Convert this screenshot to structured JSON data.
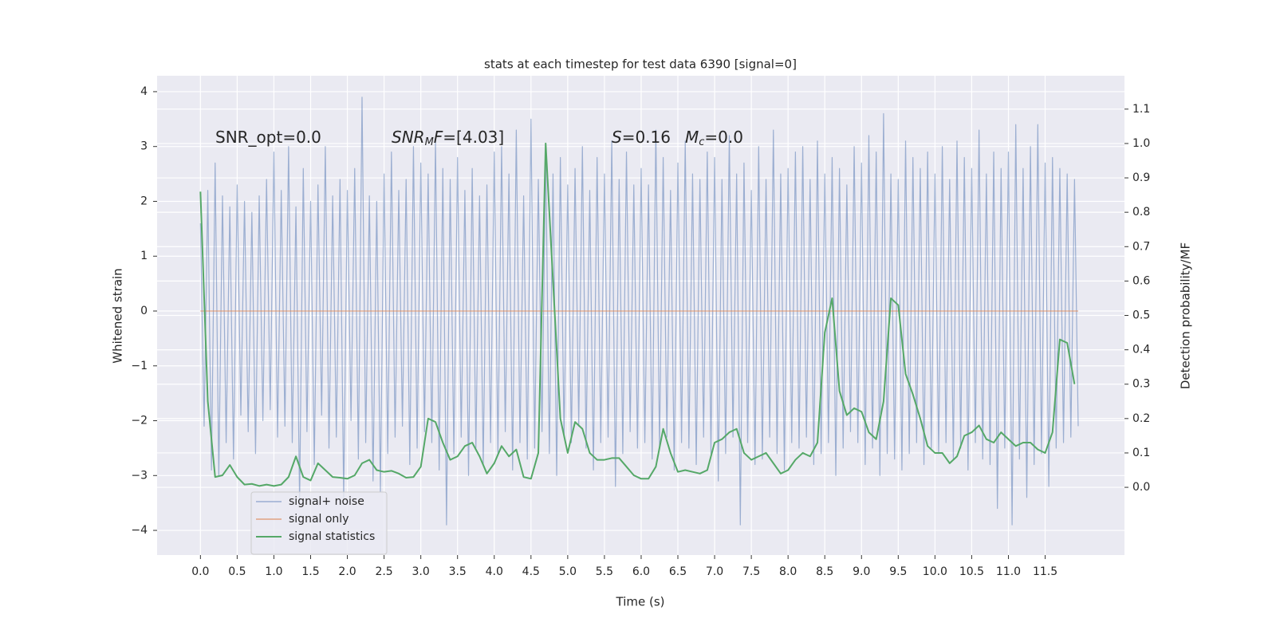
{
  "chart_data": {
    "type": "line",
    "title": "stats at each timestep for test data 6390 [signal=0]",
    "x_label": "Time (s)",
    "y_label": "Whitened strain",
    "y2_label": "Detection probability/MF",
    "grid": true,
    "legend": "lower left",
    "annotations": [
      {
        "segments": [
          {
            "text": "SNR_opt=0.0"
          }
        ]
      },
      {
        "segments": [
          {
            "text": "SNR",
            "style": "italic"
          },
          {
            "text": "M",
            "style": "subscript"
          },
          {
            "text": "F",
            "style": "italic"
          },
          {
            "text": "=[4.03]"
          }
        ]
      },
      {
        "segments": [
          {
            "text": "S",
            "style": "italic"
          },
          {
            "text": "=0.16"
          }
        ]
      },
      {
        "segments": [
          {
            "text": "M",
            "style": "italic"
          },
          {
            "text": "c",
            "style": "subscript"
          },
          {
            "text": "=0.0"
          }
        ]
      }
    ],
    "xlim": [
      -0.59,
      12.58
    ],
    "ylim": [
      -4.45,
      4.29
    ],
    "y2lim": [
      -0.197,
      1.197
    ],
    "xticks": [
      {
        "value": 0,
        "label": "0.0"
      },
      0.5,
      {
        "value": 1,
        "label": "1.0"
      },
      1.5,
      {
        "value": 2,
        "label": "2.0"
      },
      2.5,
      {
        "value": 3,
        "label": "3.0"
      },
      3.5,
      {
        "value": 4,
        "label": "4.0"
      },
      4.5,
      {
        "value": 5,
        "label": "5.0"
      },
      5.5,
      {
        "value": 6,
        "label": "6.0"
      },
      6.5,
      {
        "value": 7,
        "label": "7.0"
      },
      7.5,
      {
        "value": 8,
        "label": "8.0"
      },
      8.5,
      {
        "value": 9,
        "label": "9.0"
      },
      9.5,
      {
        "value": 10,
        "label": "10.0"
      },
      10.5,
      {
        "value": 11,
        "label": "11.0"
      },
      11.5
    ],
    "yticks": [
      {
        "value": -4,
        "label": "−4"
      },
      {
        "value": -3,
        "label": "−3"
      },
      {
        "value": -2,
        "label": "−2"
      },
      {
        "value": -1,
        "label": "−1"
      },
      0,
      1,
      2,
      3,
      4
    ],
    "y2ticks": [
      {
        "value": 0,
        "label": "0.0"
      },
      0.1,
      0.2,
      0.3,
      0.4,
      0.5,
      0.6,
      0.7,
      0.8,
      0.9,
      {
        "value": 1,
        "label": "1.0"
      },
      1.1
    ],
    "series": [
      {
        "name": "signal+ noise",
        "color": "#4c72b0",
        "alpha": 0.5,
        "x": [
          0,
          0.05,
          0.1,
          0.15,
          0.2,
          0.25,
          0.3,
          0.35,
          0.4,
          0.45,
          0.5,
          0.55,
          0.6,
          0.65,
          0.7,
          0.75,
          0.8,
          0.85,
          0.9,
          0.95,
          1,
          1.05,
          1.1,
          1.15,
          1.2,
          1.25,
          1.3,
          1.35,
          1.4,
          1.45,
          1.5,
          1.55,
          1.6,
          1.65,
          1.7,
          1.75,
          1.8,
          1.85,
          1.9,
          1.95,
          2,
          2.05,
          2.1,
          2.15,
          2.2,
          2.25,
          2.3,
          2.35,
          2.4,
          2.45,
          2.5,
          2.55,
          2.6,
          2.65,
          2.7,
          2.75,
          2.8,
          2.85,
          2.9,
          2.95,
          3,
          3.05,
          3.1,
          3.15,
          3.2,
          3.25,
          3.3,
          3.35,
          3.4,
          3.45,
          3.5,
          3.55,
          3.6,
          3.65,
          3.7,
          3.75,
          3.8,
          3.85,
          3.9,
          3.95,
          4,
          4.05,
          4.1,
          4.15,
          4.2,
          4.25,
          4.3,
          4.35,
          4.4,
          4.45,
          4.5,
          4.55,
          4.6,
          4.65,
          4.7,
          4.75,
          4.8,
          4.85,
          4.9,
          4.95,
          5,
          5.05,
          5.1,
          5.15,
          5.2,
          5.25,
          5.3,
          5.35,
          5.4,
          5.45,
          5.5,
          5.55,
          5.6,
          5.65,
          5.7,
          5.75,
          5.8,
          5.85,
          5.9,
          5.95,
          6,
          6.05,
          6.1,
          6.15,
          6.2,
          6.25,
          6.3,
          6.35,
          6.4,
          6.45,
          6.5,
          6.55,
          6.6,
          6.65,
          6.7,
          6.75,
          6.8,
          6.85,
          6.9,
          6.95,
          7,
          7.05,
          7.1,
          7.15,
          7.2,
          7.25,
          7.3,
          7.35,
          7.4,
          7.45,
          7.5,
          7.55,
          7.6,
          7.65,
          7.7,
          7.75,
          7.8,
          7.85,
          7.9,
          7.95,
          8,
          8.05,
          8.1,
          8.15,
          8.2,
          8.25,
          8.3,
          8.35,
          8.4,
          8.45,
          8.5,
          8.55,
          8.6,
          8.65,
          8.7,
          8.75,
          8.8,
          8.85,
          8.9,
          8.95,
          9,
          9.05,
          9.1,
          9.15,
          9.2,
          9.25,
          9.3,
          9.35,
          9.4,
          9.45,
          9.5,
          9.55,
          9.6,
          9.65,
          9.7,
          9.75,
          9.8,
          9.85,
          9.9,
          9.95,
          10,
          10.05,
          10.1,
          10.15,
          10.2,
          10.25,
          10.3,
          10.35,
          10.4,
          10.45,
          10.5,
          10.55,
          10.6,
          10.65,
          10.7,
          10.75,
          10.8,
          10.85,
          10.9,
          10.95,
          11,
          11.05,
          11.1,
          11.15,
          11.2,
          11.25,
          11.3,
          11.35,
          11.4,
          11.45,
          11.5,
          11.55,
          11.6,
          11.65,
          11.7,
          11.75,
          11.8,
          11.85,
          11.9,
          11.95
        ],
        "values": [
          1.6,
          -2.1,
          2.2,
          -2.9,
          2.7,
          -3.0,
          2.1,
          -2.4,
          1.9,
          -2.7,
          2.3,
          -1.9,
          2.0,
          -2.2,
          1.8,
          -2.6,
          2.1,
          -2.0,
          2.4,
          -1.8,
          2.9,
          -2.3,
          2.2,
          -2.1,
          3.0,
          -2.4,
          1.9,
          -3.5,
          2.6,
          -2.2,
          2.0,
          -2.8,
          2.3,
          -1.9,
          3.0,
          -2.5,
          2.1,
          -2.3,
          2.4,
          -3.4,
          2.2,
          -2.0,
          2.6,
          -2.7,
          3.9,
          -2.4,
          2.1,
          -3.1,
          2.0,
          -3.3,
          2.5,
          -2.6,
          2.9,
          -2.3,
          2.2,
          -2.1,
          2.4,
          -2.8,
          3.0,
          -2.5,
          2.7,
          -2.2,
          2.5,
          -2.4,
          3.1,
          -2.9,
          2.6,
          -3.9,
          2.4,
          -2.6,
          2.8,
          -2.3,
          2.2,
          -3.0,
          2.6,
          -2.5,
          2.1,
          -2.8,
          2.3,
          -2.4,
          2.9,
          -2.6,
          3.0,
          -2.2,
          2.5,
          -2.9,
          3.3,
          -2.4,
          2.1,
          -2.7,
          3.5,
          -2.5,
          2.4,
          -2.2,
          2.9,
          -2.6,
          2.5,
          -3.0,
          2.8,
          -2.3,
          2.3,
          -2.4,
          2.6,
          -2.1,
          3.0,
          -2.5,
          2.2,
          -2.9,
          2.8,
          -2.4,
          2.5,
          -2.3,
          3.1,
          -3.2,
          2.4,
          -2.6,
          2.9,
          -2.2,
          2.3,
          -2.5,
          2.6,
          -2.4,
          2.3,
          -2.7,
          3.3,
          -2.5,
          2.8,
          -2.3,
          2.2,
          -2.9,
          2.7,
          -2.4,
          3.1,
          -2.5,
          2.5,
          -2.8,
          2.4,
          -2.3,
          2.9,
          -2.6,
          2.8,
          -3.1,
          2.4,
          -2.6,
          3.2,
          -2.3,
          2.5,
          -3.9,
          2.7,
          -2.4,
          2.2,
          -2.8,
          3.0,
          -2.7,
          2.4,
          -2.3,
          3.3,
          -2.6,
          2.5,
          -2.9,
          2.6,
          -2.4,
          2.9,
          -2.5,
          3.0,
          -2.3,
          2.4,
          -2.8,
          3.1,
          -2.6,
          2.5,
          -2.4,
          2.8,
          -3.0,
          2.6,
          -2.5,
          2.3,
          -2.2,
          3.0,
          -2.4,
          2.7,
          -2.8,
          3.2,
          -2.5,
          2.9,
          -3.0,
          3.6,
          -2.6,
          2.5,
          -2.7,
          2.4,
          -2.9,
          3.1,
          -2.6,
          2.8,
          -2.4,
          2.6,
          -2.8,
          2.9,
          -2.5,
          2.5,
          -2.6,
          3.0,
          -2.4,
          2.4,
          -2.7,
          3.1,
          -2.5,
          2.8,
          -2.9,
          2.6,
          -2.4,
          3.3,
          -2.7,
          2.5,
          -2.8,
          2.9,
          -3.6,
          2.6,
          -2.5,
          2.9,
          -3.9,
          3.4,
          -2.7,
          2.6,
          -3.4,
          3.0,
          -2.8,
          3.4,
          -2.6,
          2.7,
          -3.2,
          2.8,
          -2.5,
          2.6,
          -2.4,
          2.5,
          -2.3,
          2.4,
          -2.1
        ]
      },
      {
        "name": "signal only",
        "color": "#dd8452",
        "alpha": 0.7,
        "x": [
          0,
          11.95
        ],
        "values": [
          0,
          0
        ]
      },
      {
        "name": "signal statistics",
        "color": "#55a868",
        "axis": "y2",
        "x": [
          0,
          0.1,
          0.2,
          0.3,
          0.4,
          0.5,
          0.6,
          0.7,
          0.8,
          0.9,
          1,
          1.1,
          1.2,
          1.3,
          1.4,
          1.5,
          1.6,
          1.7,
          1.8,
          1.9,
          2,
          2.1,
          2.2,
          2.3,
          2.4,
          2.5,
          2.6,
          2.7,
          2.8,
          2.9,
          3,
          3.1,
          3.2,
          3.3,
          3.4,
          3.5,
          3.6,
          3.7,
          3.8,
          3.9,
          4,
          4.1,
          4.2,
          4.3,
          4.4,
          4.5,
          4.6,
          4.7,
          4.8,
          4.9,
          5,
          5.1,
          5.2,
          5.3,
          5.4,
          5.5,
          5.6,
          5.7,
          5.8,
          5.9,
          6,
          6.1,
          6.2,
          6.3,
          6.4,
          6.5,
          6.6,
          6.7,
          6.8,
          6.9,
          7,
          7.1,
          7.2,
          7.3,
          7.4,
          7.5,
          7.6,
          7.7,
          7.8,
          7.9,
          8,
          8.1,
          8.2,
          8.3,
          8.4,
          8.5,
          8.6,
          8.7,
          8.8,
          8.9,
          9,
          9.1,
          9.2,
          9.3,
          9.4,
          9.5,
          9.6,
          9.7,
          9.8,
          9.9,
          10,
          10.1,
          10.2,
          10.3,
          10.4,
          10.5,
          10.6,
          10.7,
          10.8,
          10.9,
          11,
          11.1,
          11.2,
          11.3,
          11.4,
          11.5,
          11.6,
          11.7,
          11.8,
          11.9
        ],
        "values": [
          0.86,
          0.25,
          0.03,
          0.035,
          0.065,
          0.03,
          0.008,
          0.01,
          0.004,
          0.008,
          0.004,
          0.008,
          0.03,
          0.09,
          0.03,
          0.02,
          0.07,
          0.05,
          0.03,
          0.028,
          0.025,
          0.035,
          0.07,
          0.08,
          0.05,
          0.045,
          0.048,
          0.04,
          0.028,
          0.03,
          0.06,
          0.2,
          0.19,
          0.13,
          0.08,
          0.09,
          0.12,
          0.13,
          0.09,
          0.04,
          0.07,
          0.12,
          0.09,
          0.11,
          0.03,
          0.025,
          0.1,
          1.0,
          0.6,
          0.2,
          0.1,
          0.19,
          0.17,
          0.1,
          0.08,
          0.08,
          0.085,
          0.085,
          0.06,
          0.035,
          0.025,
          0.025,
          0.06,
          0.17,
          0.1,
          0.045,
          0.05,
          0.045,
          0.04,
          0.05,
          0.13,
          0.14,
          0.16,
          0.17,
          0.1,
          0.08,
          0.09,
          0.1,
          0.07,
          0.04,
          0.05,
          0.08,
          0.1,
          0.09,
          0.13,
          0.45,
          0.55,
          0.28,
          0.21,
          0.23,
          0.22,
          0.16,
          0.14,
          0.25,
          0.55,
          0.53,
          0.33,
          0.27,
          0.2,
          0.12,
          0.1,
          0.1,
          0.07,
          0.09,
          0.15,
          0.16,
          0.18,
          0.14,
          0.13,
          0.16,
          0.14,
          0.12,
          0.13,
          0.13,
          0.11,
          0.1,
          0.16,
          0.43,
          0.42,
          0.3
        ]
      }
    ]
  }
}
